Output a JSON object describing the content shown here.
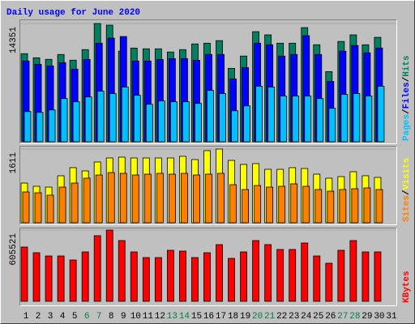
{
  "chart_data": [
    {
      "type": "bar",
      "title": "Daily usage for June 2020",
      "legend_separator": "/",
      "ylim": [
        0,
        14351
      ],
      "yticks": [
        14351
      ],
      "grid": true,
      "series": [
        {
          "name": "Hits",
          "color": "#008060",
          "values": [
            10690,
            10190,
            10000,
            10590,
            9900,
            11180,
            14351,
            14150,
            10990,
            11370,
            11280,
            11280,
            10890,
            11180,
            11870,
            11960,
            12270,
            8910,
            10400,
            13360,
            12970,
            11960,
            11960,
            13850,
            11770,
            8510,
            12170,
            12970,
            11770,
            12670,
            null
          ]
        },
        {
          "name": "Files",
          "color": "#0000ff",
          "values": [
            9800,
            9400,
            9200,
            9600,
            8810,
            9990,
            11960,
            12570,
            12770,
            9800,
            9800,
            9990,
            10090,
            10090,
            9890,
            10590,
            10590,
            7620,
            9000,
            11960,
            11770,
            10390,
            10590,
            12870,
            10590,
            7320,
            10990,
            11680,
            10790,
            11370,
            null
          ]
        },
        {
          "name": "Pages",
          "color": "#00c0ff",
          "values": [
            3660,
            3560,
            3860,
            5240,
            4850,
            5440,
            6140,
            5840,
            6630,
            5640,
            4550,
            4950,
            4850,
            4850,
            4650,
            6230,
            5840,
            3760,
            4350,
            6730,
            6630,
            5540,
            5540,
            5540,
            5240,
            4060,
            5740,
            5840,
            5540,
            6730,
            null
          ]
        }
      ]
    },
    {
      "type": "bar",
      "legend_separator": "/",
      "ylim": [
        0,
        1611
      ],
      "yticks": [
        1611
      ],
      "grid": true,
      "series": [
        {
          "name": "Visits",
          "color": "#ffff00",
          "values": [
            867,
            797,
            779,
            1027,
            1204,
            1133,
            1328,
            1416,
            1434,
            1416,
            1416,
            1416,
            1416,
            1452,
            1381,
            1576,
            1611,
            1363,
            1275,
            1293,
            1168,
            1168,
            1204,
            1186,
            1062,
            974,
            1009,
            1115,
            1027,
            991,
            null
          ]
        },
        {
          "name": "Sites",
          "color": "#ff8000",
          "values": [
            673,
            655,
            602,
            779,
            867,
            974,
            1044,
            1097,
            1080,
            1044,
            1062,
            1080,
            1062,
            1080,
            1044,
            1062,
            1080,
            832,
            726,
            814,
            779,
            797,
            850,
            797,
            726,
            690,
            726,
            743,
            761,
            726,
            null
          ]
        }
      ]
    },
    {
      "type": "bar",
      "ylim": [
        0,
        605521
      ],
      "yticks": [
        605521
      ],
      "grid": true,
      "categories": [
        "1",
        "2",
        "3",
        "4",
        "5",
        "6",
        "7",
        "8",
        "9",
        "10",
        "11",
        "12",
        "13",
        "14",
        "15",
        "16",
        "17",
        "18",
        "19",
        "20",
        "21",
        "22",
        "23",
        "24",
        "25",
        "26",
        "27",
        "28",
        "29",
        "30",
        "31"
      ],
      "category_colors": [
        "#000000",
        "#000000",
        "#000000",
        "#000000",
        "#000000",
        "#008040",
        "#008040",
        "#000000",
        "#000000",
        "#000000",
        "#000000",
        "#000000",
        "#008040",
        "#008040",
        "#000000",
        "#000000",
        "#000000",
        "#000000",
        "#000000",
        "#008040",
        "#008040",
        "#000000",
        "#000000",
        "#000000",
        "#000000",
        "#000000",
        "#008040",
        "#008040",
        "#000000",
        "#000000",
        "#000000"
      ],
      "series": [
        {
          "name": "KBytes",
          "color": "#ff0000",
          "values": [
            461000,
            412900,
            385300,
            385300,
            350900,
            419700,
            557400,
            605521,
            516100,
            419700,
            371600,
            371600,
            433500,
            426600,
            371600,
            412900,
            481700,
            364700,
            419700,
            516100,
            481700,
            440400,
            440400,
            495400,
            385300,
            323400,
            433500,
            516100,
            419700,
            419700,
            null
          ]
        }
      ]
    }
  ]
}
